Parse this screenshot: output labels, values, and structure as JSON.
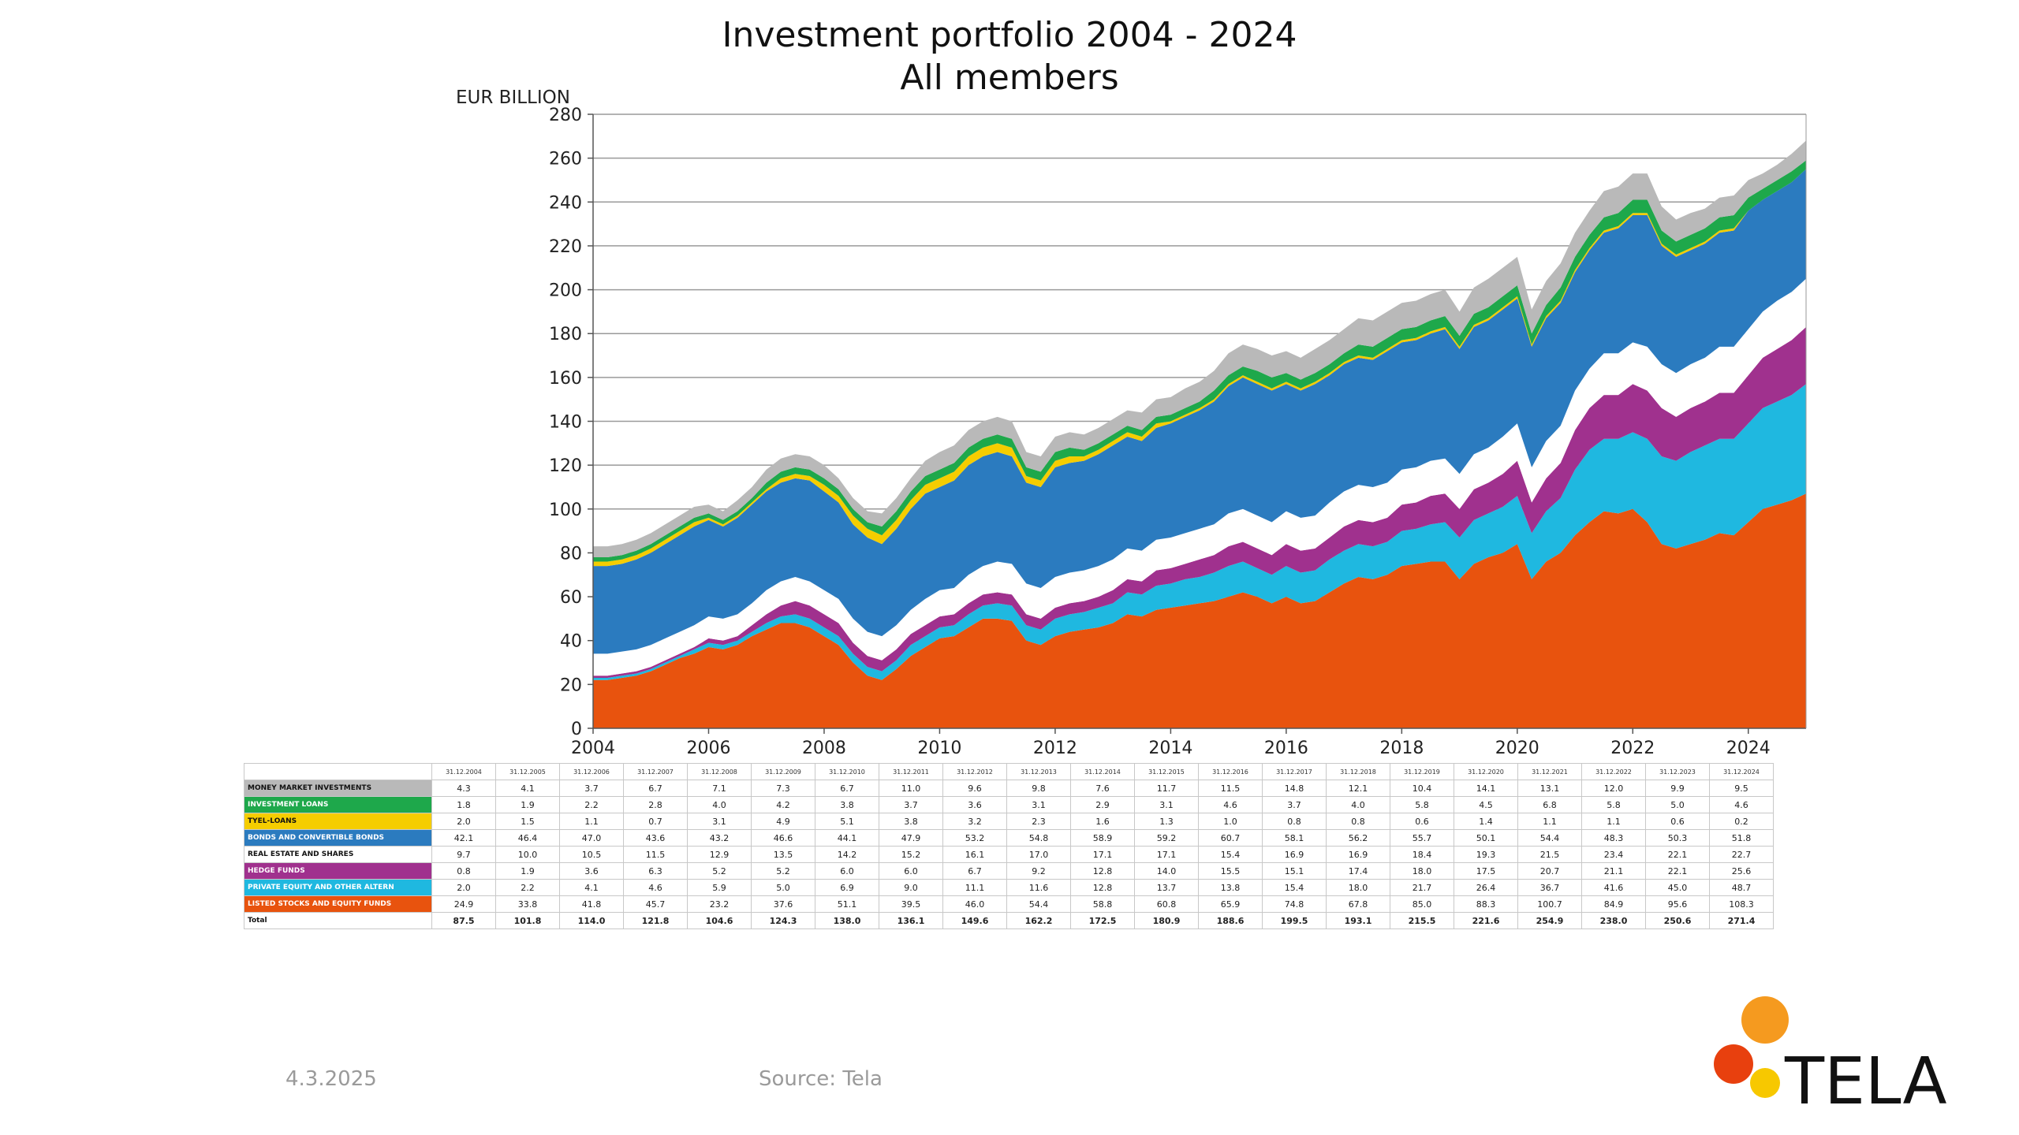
{
  "title": {
    "line1": "Investment portfolio 2004 - 2024",
    "line2": "All members"
  },
  "footer": {
    "date": "4.3.2025",
    "source": "Source: Tela"
  },
  "logo": {
    "text": "TELA"
  },
  "chart_data": {
    "type": "area",
    "stacked": true,
    "ylabel": "EUR BILLION",
    "ylim": [
      0,
      280
    ],
    "yticks": [
      0,
      20,
      40,
      60,
      80,
      100,
      120,
      140,
      160,
      180,
      200,
      220,
      240,
      260,
      280
    ],
    "xlim": [
      2004,
      2025
    ],
    "xticks": [
      2004,
      2006,
      2008,
      2010,
      2012,
      2014,
      2016,
      2018,
      2020,
      2022,
      2024
    ],
    "grid": "horizontal",
    "colors": {
      "listed": "#e8530e",
      "pe": "#1fb8e0",
      "hedge": "#a0318e",
      "re": "#ffffff",
      "bonds": "#2b7bbf",
      "tyel": "#f5cd00",
      "loans": "#1ea84b",
      "mm": "#b9b9b9"
    },
    "x": [
      2004,
      2004.25,
      2004.5,
      2004.75,
      2005,
      2005.25,
      2005.5,
      2005.75,
      2006,
      2006.25,
      2006.5,
      2006.75,
      2007,
      2007.25,
      2007.5,
      2007.75,
      2008,
      2008.25,
      2008.5,
      2008.75,
      2009,
      2009.25,
      2009.5,
      2009.75,
      2010,
      2010.25,
      2010.5,
      2010.75,
      2011,
      2011.25,
      2011.5,
      2011.75,
      2012,
      2012.25,
      2012.5,
      2012.75,
      2013,
      2013.25,
      2013.5,
      2013.75,
      2014,
      2014.25,
      2014.5,
      2014.75,
      2015,
      2015.25,
      2015.5,
      2015.75,
      2016,
      2016.25,
      2016.5,
      2016.75,
      2017,
      2017.25,
      2017.5,
      2017.75,
      2018,
      2018.25,
      2018.5,
      2018.75,
      2019,
      2019.25,
      2019.5,
      2019.75,
      2020,
      2020.25,
      2020.5,
      2020.75,
      2021,
      2021.25,
      2021.5,
      2021.75,
      2022,
      2022.25,
      2022.5,
      2022.75,
      2023,
      2023.25,
      2023.5,
      2023.75,
      2024,
      2024.25,
      2024.5,
      2024.75,
      2025
    ],
    "series": [
      {
        "key": "listed",
        "values": [
          22,
          22,
          23,
          24,
          26,
          29,
          32,
          34,
          37,
          36,
          38,
          42,
          45,
          48,
          48,
          46,
          42,
          38,
          30,
          24,
          22,
          27,
          33,
          37,
          41,
          42,
          46,
          50,
          50,
          49,
          40,
          38,
          42,
          44,
          45,
          46,
          48,
          52,
          51,
          54,
          55,
          56,
          57,
          58,
          60,
          62,
          60,
          57,
          60,
          57,
          58,
          62,
          66,
          69,
          68,
          70,
          74,
          75,
          76,
          76,
          68,
          75,
          78,
          80,
          84,
          68,
          76,
          80,
          88,
          94,
          99,
          98,
          100,
          94,
          84,
          82,
          84,
          86,
          89,
          88,
          94,
          100,
          102,
          104,
          107
        ]
      },
      {
        "key": "pe",
        "values": [
          1,
          1,
          1,
          1,
          1,
          1,
          1,
          2,
          2,
          2,
          2,
          2,
          3,
          3,
          4,
          4,
          4,
          4,
          4,
          4,
          4,
          4,
          5,
          5,
          5,
          5,
          6,
          6,
          7,
          7,
          7,
          7,
          8,
          8,
          8,
          9,
          9,
          10,
          10,
          11,
          11,
          12,
          12,
          13,
          14,
          14,
          13,
          13,
          14,
          14,
          14,
          15,
          15,
          15,
          15,
          15,
          16,
          16,
          17,
          18,
          19,
          20,
          20,
          21,
          22,
          21,
          23,
          25,
          30,
          33,
          33,
          34,
          35,
          38,
          40,
          40,
          42,
          43,
          43,
          44,
          45,
          46,
          47,
          48,
          50
        ]
      },
      {
        "key": "hedge",
        "values": [
          1,
          1,
          1,
          1,
          1,
          1,
          1,
          1,
          2,
          2,
          2,
          3,
          4,
          5,
          6,
          6,
          6,
          6,
          5,
          5,
          5,
          5,
          5,
          5,
          5,
          5,
          5,
          5,
          5,
          5,
          5,
          5,
          5,
          5,
          5,
          5,
          6,
          6,
          6,
          7,
          7,
          7,
          8,
          8,
          9,
          9,
          9,
          9,
          10,
          10,
          10,
          10,
          11,
          11,
          11,
          11,
          12,
          12,
          13,
          13,
          13,
          14,
          14,
          15,
          16,
          14,
          15,
          16,
          18,
          19,
          20,
          20,
          22,
          22,
          22,
          20,
          20,
          20,
          21,
          21,
          22,
          23,
          24,
          25,
          26
        ]
      },
      {
        "key": "re",
        "values": [
          10,
          10,
          10,
          10,
          10,
          10,
          10,
          10,
          10,
          10,
          10,
          10,
          11,
          11,
          11,
          11,
          11,
          11,
          11,
          11,
          11,
          11,
          11,
          12,
          12,
          12,
          13,
          13,
          14,
          14,
          14,
          14,
          14,
          14,
          14,
          14,
          14,
          14,
          14,
          14,
          14,
          14,
          14,
          14,
          15,
          15,
          15,
          15,
          15,
          15,
          15,
          16,
          16,
          16,
          16,
          16,
          16,
          16,
          16,
          16,
          16,
          16,
          16,
          17,
          17,
          16,
          17,
          17,
          18,
          18,
          19,
          19,
          19,
          20,
          20,
          20,
          20,
          20,
          21,
          21,
          21,
          21,
          22,
          22,
          22
        ]
      },
      {
        "key": "bonds",
        "values": [
          40,
          40,
          40,
          41,
          42,
          43,
          44,
          45,
          44,
          42,
          44,
          45,
          45,
          45,
          45,
          46,
          45,
          44,
          43,
          43,
          42,
          44,
          46,
          48,
          47,
          49,
          50,
          50,
          50,
          49,
          46,
          46,
          50,
          50,
          50,
          51,
          52,
          51,
          50,
          51,
          52,
          53,
          54,
          56,
          58,
          60,
          60,
          60,
          58,
          58,
          60,
          58,
          58,
          58,
          58,
          60,
          58,
          58,
          58,
          59,
          57,
          58,
          58,
          58,
          57,
          55,
          56,
          56,
          54,
          54,
          55,
          57,
          58,
          60,
          54,
          53,
          52,
          52,
          52,
          53,
          54,
          51,
          50,
          50,
          50
        ]
      },
      {
        "key": "tyel",
        "values": [
          2,
          2,
          2,
          2,
          2,
          2,
          2,
          2,
          1,
          1,
          1,
          1,
          1,
          2,
          2,
          2,
          3,
          3,
          4,
          4,
          4,
          4,
          4,
          4,
          4,
          4,
          4,
          4,
          4,
          4,
          3,
          3,
          3,
          3,
          2,
          2,
          2,
          2,
          2,
          2,
          1,
          1,
          1,
          1,
          1,
          1,
          1,
          1,
          1,
          1,
          1,
          1,
          1,
          1,
          1,
          1,
          1,
          1,
          1,
          1,
          1,
          1,
          1,
          1,
          1,
          1,
          1,
          1,
          1,
          1,
          1,
          1,
          1,
          1,
          1,
          1,
          1,
          1,
          1,
          1,
          0,
          0,
          0,
          0,
          0
        ]
      },
      {
        "key": "loans",
        "values": [
          2,
          2,
          2,
          2,
          2,
          2,
          2,
          2,
          2,
          2,
          2,
          2,
          3,
          3,
          3,
          3,
          3,
          3,
          3,
          3,
          4,
          4,
          4,
          4,
          4,
          4,
          4,
          4,
          4,
          4,
          4,
          4,
          4,
          4,
          3,
          3,
          3,
          3,
          3,
          3,
          3,
          3,
          3,
          4,
          4,
          4,
          5,
          5,
          4,
          4,
          4,
          4,
          4,
          5,
          5,
          5,
          5,
          5,
          5,
          5,
          5,
          5,
          5,
          5,
          5,
          5,
          5,
          6,
          6,
          6,
          6,
          6,
          6,
          6,
          6,
          6,
          6,
          6,
          6,
          6,
          6,
          5,
          5,
          5,
          4
        ]
      },
      {
        "key": "mm",
        "values": [
          5,
          5,
          5,
          5,
          5,
          5,
          5,
          5,
          4,
          4,
          5,
          5,
          6,
          6,
          6,
          6,
          6,
          5,
          5,
          5,
          6,
          6,
          6,
          7,
          8,
          8,
          8,
          8,
          8,
          8,
          7,
          7,
          7,
          7,
          7,
          7,
          7,
          7,
          8,
          8,
          8,
          9,
          9,
          9,
          10,
          10,
          10,
          10,
          10,
          10,
          11,
          11,
          11,
          12,
          12,
          12,
          12,
          12,
          12,
          12,
          11,
          12,
          13,
          13,
          13,
          11,
          11,
          11,
          11,
          11,
          12,
          12,
          12,
          12,
          11,
          10,
          10,
          9,
          9,
          9,
          8,
          7,
          7,
          8,
          9
        ]
      }
    ],
    "table": {
      "headers": [
        "31.12.2004",
        "31.12.2005",
        "31.12.2006",
        "31.12.2007",
        "31.12.2008",
        "31.12.2009",
        "31.12.2010",
        "31.12.2011",
        "31.12.2012",
        "31.12.2013",
        "31.12.2014",
        "31.12.2015",
        "31.12.2016",
        "31.12.2017",
        "31.12.2018",
        "31.12.2019",
        "31.12.2020",
        "31.12.2021",
        "31.12.2022",
        "31.12.2023",
        "31.12.2024"
      ],
      "rows": [
        {
          "label": "MONEY MARKET INVESTMENTS",
          "color": "#b9b9b9",
          "values": [
            "4.3",
            "4.1",
            "3.7",
            "6.7",
            "7.1",
            "7.3",
            "6.7",
            "11.0",
            "9.6",
            "9.8",
            "7.6",
            "11.7",
            "11.5",
            "14.8",
            "12.1",
            "10.4",
            "14.1",
            "13.1",
            "12.0",
            "9.9",
            "9.5"
          ]
        },
        {
          "label": "INVESTMENT LOANS",
          "color": "#1ea84b",
          "values": [
            "1.8",
            "1.9",
            "2.2",
            "2.8",
            "4.0",
            "4.2",
            "3.8",
            "3.7",
            "3.6",
            "3.1",
            "2.9",
            "3.1",
            "4.6",
            "3.7",
            "4.0",
            "5.8",
            "4.5",
            "6.8",
            "5.8",
            "5.0",
            "4.6"
          ]
        },
        {
          "label": "TYEL-LOANS",
          "color": "#f5cd00",
          "values": [
            "2.0",
            "1.5",
            "1.1",
            "0.7",
            "3.1",
            "4.9",
            "5.1",
            "3.8",
            "3.2",
            "2.3",
            "1.6",
            "1.3",
            "1.0",
            "0.8",
            "0.8",
            "0.6",
            "1.4",
            "1.1",
            "1.1",
            "0.6",
            "0.2"
          ]
        },
        {
          "label": "BONDS AND CONVERTIBLE BONDS",
          "color": "#2b7bbf",
          "values": [
            "42.1",
            "46.4",
            "47.0",
            "43.6",
            "43.2",
            "46.6",
            "44.1",
            "47.9",
            "53.2",
            "54.8",
            "58.9",
            "59.2",
            "60.7",
            "58.1",
            "56.2",
            "55.7",
            "50.1",
            "54.4",
            "48.3",
            "50.3",
            "51.8"
          ]
        },
        {
          "label": "REAL ESTATE AND SHARES",
          "color": "#ffffff",
          "values": [
            "9.7",
            "10.0",
            "10.5",
            "11.5",
            "12.9",
            "13.5",
            "14.2",
            "15.2",
            "16.1",
            "17.0",
            "17.1",
            "17.1",
            "15.4",
            "16.9",
            "16.9",
            "18.4",
            "19.3",
            "21.5",
            "23.4",
            "22.1",
            "22.7"
          ]
        },
        {
          "label": "HEDGE FUNDS",
          "color": "#a0318e",
          "values": [
            "0.8",
            "1.9",
            "3.6",
            "6.3",
            "5.2",
            "5.2",
            "6.0",
            "6.0",
            "6.7",
            "9.2",
            "12.8",
            "14.0",
            "15.5",
            "15.1",
            "17.4",
            "18.0",
            "17.5",
            "20.7",
            "21.1",
            "22.1",
            "25.6"
          ]
        },
        {
          "label": "PRIVATE EQUITY AND OTHER ALTERN",
          "color": "#1fb8e0",
          "values": [
            "2.0",
            "2.2",
            "4.1",
            "4.6",
            "5.9",
            "5.0",
            "6.9",
            "9.0",
            "11.1",
            "11.6",
            "12.8",
            "13.7",
            "13.8",
            "15.4",
            "18.0",
            "21.7",
            "26.4",
            "36.7",
            "41.6",
            "45.0",
            "48.7"
          ]
        },
        {
          "label": "LISTED STOCKS AND EQUITY FUNDS",
          "color": "#e8530e",
          "values": [
            "24.9",
            "33.8",
            "41.8",
            "45.7",
            "23.2",
            "37.6",
            "51.1",
            "39.5",
            "46.0",
            "54.4",
            "58.8",
            "60.8",
            "65.9",
            "74.8",
            "67.8",
            "85.0",
            "88.3",
            "100.7",
            "84.9",
            "95.6",
            "108.3"
          ]
        }
      ],
      "total": {
        "label": "Total",
        "values": [
          "87.5",
          "101.8",
          "114.0",
          "121.8",
          "104.6",
          "124.3",
          "138.0",
          "136.1",
          "149.6",
          "162.2",
          "172.5",
          "180.9",
          "188.6",
          "199.5",
          "193.1",
          "215.5",
          "221.6",
          "254.9",
          "238.0",
          "250.6",
          "271.4"
        ]
      }
    }
  }
}
